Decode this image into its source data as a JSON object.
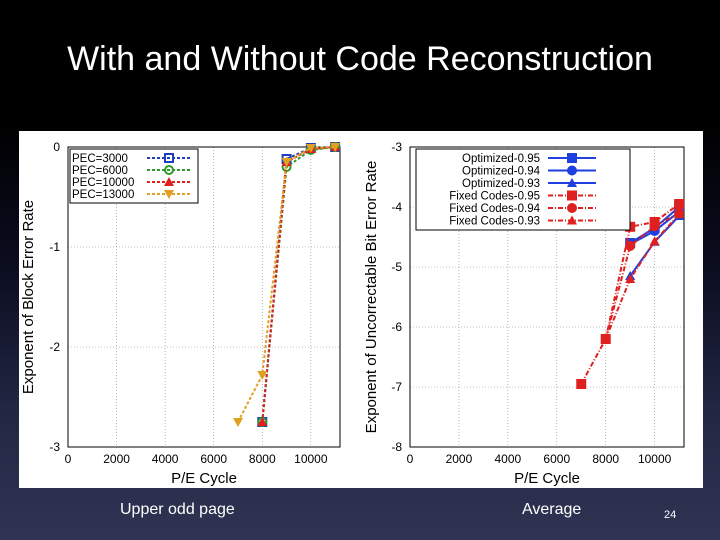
{
  "slide": {
    "title": "With and Without Code Reconstruction",
    "caption_left": "Upper odd page",
    "caption_right": "Average",
    "page_number": "24"
  },
  "chart_data": [
    {
      "type": "line",
      "title": "",
      "xlabel": "P/E Cycle",
      "ylabel": "Exponent of Block Error Rate",
      "xlim": [
        0,
        11200
      ],
      "ylim": [
        -3,
        0
      ],
      "xticks": [
        0,
        2000,
        4000,
        6000,
        8000,
        10000
      ],
      "yticks": [
        0,
        -1,
        -2,
        -3
      ],
      "grid": true,
      "legend_position": "top-left",
      "series": [
        {
          "name": "PEC=3000",
          "color": "#1f3fbf",
          "dash": "3,2",
          "marker": "square-open",
          "x": [
            8000,
            9000,
            10000,
            11000
          ],
          "y": [
            -2.75,
            -0.12,
            -0.01,
            0.0
          ]
        },
        {
          "name": "PEC=6000",
          "color": "#2a9a2a",
          "dash": "3,2",
          "marker": "circle-open",
          "x": [
            8000,
            9000,
            10000,
            11000
          ],
          "y": [
            -2.75,
            -0.2,
            -0.03,
            0.0
          ]
        },
        {
          "name": "PEC=10000",
          "color": "#e02020",
          "dash": "3,2",
          "marker": "triangle",
          "x": [
            8000,
            9000,
            10000,
            11000
          ],
          "y": [
            -2.75,
            -0.15,
            -0.02,
            0.0
          ]
        },
        {
          "name": "PEC=13000",
          "color": "#e0a020",
          "dash": "3,2",
          "marker": "triangle-down",
          "x": [
            7000,
            8000,
            9000,
            10000,
            11000
          ],
          "y": [
            -2.75,
            -2.28,
            -0.15,
            -0.01,
            0.0
          ]
        }
      ]
    },
    {
      "type": "line",
      "title": "",
      "xlabel": "P/E Cycle",
      "ylabel": "Exponent of Uncorrectable Bit Error Rate",
      "xlim": [
        0,
        11200
      ],
      "ylim": [
        -8,
        -3
      ],
      "xticks": [
        0,
        2000,
        4000,
        6000,
        8000,
        10000
      ],
      "yticks": [
        -3,
        -4,
        -5,
        -6,
        -7,
        -8
      ],
      "grid": true,
      "legend_position": "top-right",
      "series": [
        {
          "name": "Optimized-0.95",
          "color": "#1f3fdf",
          "dash": "",
          "marker": "square",
          "x": [
            9000,
            10000,
            11000
          ],
          "y": [
            -4.6,
            -4.35,
            -4.0
          ]
        },
        {
          "name": "Optimized-0.94",
          "color": "#1f3fdf",
          "dash": "",
          "marker": "circle",
          "x": [
            9000,
            10000,
            11000
          ],
          "y": [
            -4.62,
            -4.4,
            -4.08
          ]
        },
        {
          "name": "Optimized-0.93",
          "color": "#1f3fdf",
          "dash": "",
          "marker": "triangle",
          "x": [
            9000,
            10000,
            11000
          ],
          "y": [
            -5.15,
            -4.58,
            -4.15
          ]
        },
        {
          "name": "Fixed Codes-0.95",
          "color": "#e02020",
          "dash": "5,2,1,2",
          "marker": "square",
          "x": [
            7000,
            8000,
            9000,
            10000,
            11000
          ],
          "y": [
            -6.95,
            -6.2,
            -4.33,
            -4.25,
            -3.95
          ]
        },
        {
          "name": "Fixed Codes-0.94",
          "color": "#e02020",
          "dash": "5,2,1,2",
          "marker": "circle",
          "x": [
            8000,
            9000,
            10000,
            11000
          ],
          "y": [
            -6.2,
            -4.65,
            -4.32,
            -4.1
          ]
        },
        {
          "name": "Fixed Codes-0.93",
          "color": "#e02020",
          "dash": "5,2,1,2",
          "marker": "triangle",
          "x": [
            8000,
            9000,
            10000,
            11000
          ],
          "y": [
            -6.2,
            -5.2,
            -4.57,
            -4.12
          ]
        }
      ]
    }
  ]
}
